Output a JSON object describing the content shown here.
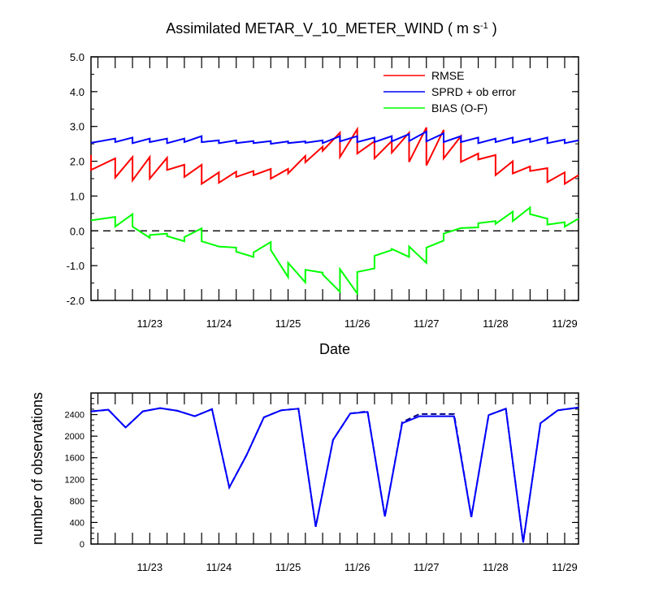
{
  "chart_data": [
    {
      "type": "line",
      "title_main": "Assimilated METAR_V_10_METER_WIND ( m s",
      "title_sup": "-1",
      "title_end": " )",
      "xlabel": "Date",
      "ylabel": "",
      "x_ticks": [
        "11/23",
        "11/24",
        "11/25",
        "11/26",
        "11/27",
        "11/28",
        "11/29"
      ],
      "y_ticks": [
        "-2.0",
        "-1.0",
        "0.0",
        "1.0",
        "2.0",
        "3.0",
        "4.0",
        "5.0"
      ],
      "ylim": [
        -2.0,
        5.0
      ],
      "xlim_days": [
        22.15,
        29.2
      ],
      "zero_line": "dashed",
      "legend_placement": "top-right",
      "legend": [
        "RMSE",
        "SPRD + ob error",
        "BIAS (O-F)"
      ],
      "colors": {
        "RMSE": "#ff0000",
        "SPRD": "#0000ff",
        "BIAS": "#00ff00"
      },
      "series": [
        {
          "name": "RMSE",
          "color": "#ff0000",
          "points": [
            [
              22.15,
              2.18
            ],
            [
              22.15,
              1.75
            ],
            [
              22.5,
              2.08
            ],
            [
              22.5,
              1.53
            ],
            [
              22.75,
              2.12
            ],
            [
              22.75,
              1.45
            ],
            [
              23.0,
              2.12
            ],
            [
              23.0,
              1.5
            ],
            [
              23.25,
              2.1
            ],
            [
              23.25,
              1.75
            ],
            [
              23.5,
              1.9
            ],
            [
              23.5,
              1.55
            ],
            [
              23.75,
              1.9
            ],
            [
              23.75,
              1.35
            ],
            [
              24.0,
              1.68
            ],
            [
              24.0,
              1.38
            ],
            [
              24.25,
              1.7
            ],
            [
              24.25,
              1.55
            ],
            [
              24.5,
              1.72
            ],
            [
              24.5,
              1.6
            ],
            [
              24.75,
              1.78
            ],
            [
              24.75,
              1.5
            ],
            [
              25.0,
              1.78
            ],
            [
              25.0,
              1.65
            ],
            [
              25.25,
              2.15
            ],
            [
              25.25,
              1.97
            ],
            [
              25.5,
              2.42
            ],
            [
              25.5,
              2.3
            ],
            [
              25.75,
              2.82
            ],
            [
              25.75,
              2.12
            ],
            [
              26.0,
              2.92
            ],
            [
              26.0,
              2.22
            ],
            [
              26.25,
              2.57
            ],
            [
              26.25,
              2.08
            ],
            [
              26.5,
              2.58
            ],
            [
              26.5,
              2.25
            ],
            [
              26.75,
              2.82
            ],
            [
              26.75,
              1.98
            ],
            [
              27.0,
              2.97
            ],
            [
              27.0,
              1.88
            ],
            [
              27.25,
              2.9
            ],
            [
              27.25,
              2.08
            ],
            [
              27.5,
              2.72
            ],
            [
              27.5,
              1.98
            ],
            [
              27.75,
              2.22
            ],
            [
              27.75,
              2.05
            ],
            [
              28.0,
              2.18
            ],
            [
              28.0,
              1.6
            ],
            [
              28.25,
              2.0
            ],
            [
              28.25,
              1.65
            ],
            [
              28.5,
              1.85
            ],
            [
              28.5,
              1.72
            ],
            [
              28.75,
              1.8
            ],
            [
              28.75,
              1.4
            ],
            [
              29.0,
              1.68
            ],
            [
              29.0,
              1.35
            ],
            [
              29.2,
              1.6
            ]
          ]
        },
        {
          "name": "SPRD + ob error",
          "color": "#0000ff",
          "points": [
            [
              22.15,
              2.53
            ],
            [
              22.5,
              2.65
            ],
            [
              22.5,
              2.55
            ],
            [
              22.75,
              2.68
            ],
            [
              22.75,
              2.52
            ],
            [
              23.0,
              2.65
            ],
            [
              23.0,
              2.55
            ],
            [
              23.25,
              2.65
            ],
            [
              23.25,
              2.52
            ],
            [
              23.5,
              2.65
            ],
            [
              23.5,
              2.55
            ],
            [
              23.75,
              2.72
            ],
            [
              23.75,
              2.55
            ],
            [
              24.0,
              2.6
            ],
            [
              24.0,
              2.52
            ],
            [
              24.25,
              2.6
            ],
            [
              24.25,
              2.52
            ],
            [
              24.5,
              2.58
            ],
            [
              24.5,
              2.52
            ],
            [
              24.75,
              2.58
            ],
            [
              24.75,
              2.5
            ],
            [
              25.0,
              2.57
            ],
            [
              25.0,
              2.52
            ],
            [
              25.25,
              2.57
            ],
            [
              25.25,
              2.53
            ],
            [
              25.5,
              2.6
            ],
            [
              25.5,
              2.52
            ],
            [
              25.75,
              2.72
            ],
            [
              25.75,
              2.57
            ],
            [
              26.0,
              2.72
            ],
            [
              26.0,
              2.55
            ],
            [
              26.25,
              2.68
            ],
            [
              26.25,
              2.55
            ],
            [
              26.5,
              2.72
            ],
            [
              26.5,
              2.57
            ],
            [
              26.75,
              2.78
            ],
            [
              26.75,
              2.58
            ],
            [
              27.0,
              2.85
            ],
            [
              27.0,
              2.57
            ],
            [
              27.25,
              2.8
            ],
            [
              27.25,
              2.55
            ],
            [
              27.5,
              2.72
            ],
            [
              27.5,
              2.55
            ],
            [
              27.75,
              2.68
            ],
            [
              27.75,
              2.52
            ],
            [
              28.0,
              2.65
            ],
            [
              28.0,
              2.55
            ],
            [
              28.25,
              2.68
            ],
            [
              28.25,
              2.53
            ],
            [
              28.5,
              2.65
            ],
            [
              28.5,
              2.55
            ],
            [
              28.75,
              2.68
            ],
            [
              28.75,
              2.52
            ],
            [
              29.0,
              2.62
            ],
            [
              29.0,
              2.52
            ],
            [
              29.2,
              2.6
            ]
          ]
        },
        {
          "name": "BIAS (O-F)",
          "color": "#00ff00",
          "points": [
            [
              22.15,
              0.3
            ],
            [
              22.5,
              0.4
            ],
            [
              22.5,
              0.12
            ],
            [
              22.75,
              0.48
            ],
            [
              22.75,
              0.12
            ],
            [
              23.0,
              -0.2
            ],
            [
              23.0,
              -0.12
            ],
            [
              23.25,
              -0.08
            ],
            [
              23.25,
              -0.15
            ],
            [
              23.5,
              -0.3
            ],
            [
              23.5,
              -0.18
            ],
            [
              23.75,
              0.07
            ],
            [
              23.75,
              -0.3
            ],
            [
              24.0,
              -0.45
            ],
            [
              24.0,
              -0.45
            ],
            [
              24.25,
              -0.48
            ],
            [
              24.25,
              -0.6
            ],
            [
              24.5,
              -0.75
            ],
            [
              24.5,
              -0.62
            ],
            [
              24.75,
              -0.32
            ],
            [
              24.75,
              -0.55
            ],
            [
              25.0,
              -1.33
            ],
            [
              25.0,
              -0.92
            ],
            [
              25.25,
              -1.48
            ],
            [
              25.25,
              -1.12
            ],
            [
              25.5,
              -1.2
            ],
            [
              25.5,
              -1.25
            ],
            [
              25.75,
              -1.75
            ],
            [
              25.75,
              -1.1
            ],
            [
              26.0,
              -1.8
            ],
            [
              26.0,
              -1.18
            ],
            [
              26.25,
              -1.08
            ],
            [
              26.25,
              -0.72
            ],
            [
              26.5,
              -0.55
            ],
            [
              26.5,
              -0.52
            ],
            [
              26.75,
              -0.75
            ],
            [
              26.75,
              -0.45
            ],
            [
              27.0,
              -0.92
            ],
            [
              27.0,
              -0.48
            ],
            [
              27.25,
              -0.28
            ],
            [
              27.25,
              -0.08
            ],
            [
              27.5,
              0.08
            ],
            [
              27.5,
              0.08
            ],
            [
              27.75,
              0.1
            ],
            [
              27.75,
              0.22
            ],
            [
              28.0,
              0.28
            ],
            [
              28.0,
              0.2
            ],
            [
              28.25,
              0.55
            ],
            [
              28.25,
              0.28
            ],
            [
              28.5,
              0.67
            ],
            [
              28.5,
              0.48
            ],
            [
              28.75,
              0.35
            ],
            [
              28.75,
              0.18
            ],
            [
              29.0,
              0.25
            ],
            [
              29.0,
              0.12
            ],
            [
              29.2,
              0.35
            ]
          ]
        }
      ]
    },
    {
      "type": "line",
      "ylabel": "number of observations",
      "xlabel": "",
      "x_ticks": [
        "11/23",
        "11/24",
        "11/25",
        "11/26",
        "11/27",
        "11/28",
        "11/29"
      ],
      "y_ticks": [
        "0",
        "400",
        "800",
        "1200",
        "1600",
        "2000",
        "2400"
      ],
      "ylim": [
        0,
        2800
      ],
      "xlim_days": [
        22.15,
        29.2
      ],
      "series": [
        {
          "color": "#000080",
          "style": "dashed",
          "points": [
            [
              22.15,
              2460
            ],
            [
              22.4,
              2490
            ],
            [
              22.65,
              2160
            ],
            [
              22.9,
              2460
            ],
            [
              23.15,
              2520
            ],
            [
              23.4,
              2470
            ],
            [
              23.65,
              2370
            ],
            [
              23.9,
              2500
            ],
            [
              24.15,
              1050
            ],
            [
              24.4,
              1650
            ],
            [
              24.65,
              2350
            ],
            [
              24.9,
              2480
            ],
            [
              25.15,
              2510
            ],
            [
              25.4,
              320
            ],
            [
              25.65,
              1930
            ],
            [
              25.9,
              2420
            ],
            [
              26.15,
              2460
            ],
            [
              26.4,
              510
            ],
            [
              26.65,
              2260
            ],
            [
              26.9,
              2410
            ],
            [
              27.15,
              2410
            ],
            [
              27.4,
              2410
            ],
            [
              27.65,
              500
            ],
            [
              27.9,
              2390
            ],
            [
              28.15,
              2510
            ],
            [
              28.4,
              30
            ],
            [
              28.65,
              2240
            ],
            [
              28.9,
              2480
            ],
            [
              29.2,
              2530
            ]
          ]
        },
        {
          "color": "#0000ff",
          "style": "solid",
          "points": [
            [
              22.15,
              2460
            ],
            [
              22.4,
              2490
            ],
            [
              22.65,
              2160
            ],
            [
              22.9,
              2460
            ],
            [
              23.15,
              2520
            ],
            [
              23.4,
              2470
            ],
            [
              23.65,
              2370
            ],
            [
              23.9,
              2500
            ],
            [
              24.15,
              1050
            ],
            [
              24.4,
              1650
            ],
            [
              24.65,
              2350
            ],
            [
              24.9,
              2480
            ],
            [
              25.15,
              2510
            ],
            [
              25.4,
              320
            ],
            [
              25.65,
              1930
            ],
            [
              25.9,
              2420
            ],
            [
              26.15,
              2450
            ],
            [
              26.4,
              510
            ],
            [
              26.65,
              2240
            ],
            [
              26.9,
              2370
            ],
            [
              27.15,
              2370
            ],
            [
              27.4,
              2370
            ],
            [
              27.65,
              500
            ],
            [
              27.9,
              2390
            ],
            [
              28.15,
              2510
            ],
            [
              28.4,
              30
            ],
            [
              28.65,
              2240
            ],
            [
              28.9,
              2480
            ],
            [
              29.2,
              2530
            ]
          ]
        }
      ]
    }
  ]
}
